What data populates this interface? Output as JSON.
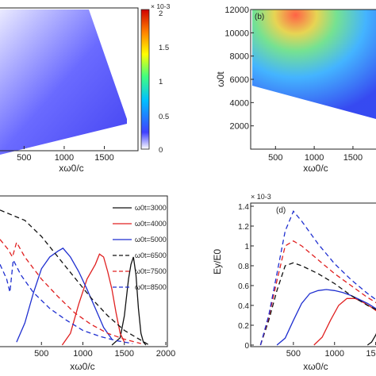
{
  "chart_data": [
    {
      "type": "heatmap",
      "panel": "top-left",
      "xlabel": "xω0/c",
      "x_ticks": [
        500,
        1000,
        1500
      ],
      "xlim": [
        200,
        1900
      ],
      "ylim": [
        0,
        12000
      ],
      "colorbar": {
        "exponent": "× 10-3",
        "ticks": [
          "2",
          "1.5",
          "1",
          "0.5",
          "0"
        ],
        "range": [
          0,
          2
        ],
        "colors": [
          "#ffffff",
          "#4040ff",
          "#00c0ff",
          "#40ff80",
          "#ffff00",
          "#ff8000",
          "#d00000"
        ]
      }
    },
    {
      "type": "heatmap",
      "panel": "top-right",
      "label": "(b)",
      "xlabel": "xω0/c",
      "ylabel": "ω0t",
      "x_ticks": [
        500,
        1000,
        1500
      ],
      "y_ticks": [
        2000,
        4000,
        6000,
        8000,
        10000,
        12000
      ],
      "xlim": [
        200,
        1900
      ],
      "ylim": [
        0,
        12000
      ]
    },
    {
      "type": "line",
      "panel": "bottom-left",
      "xlabel": "xω0/c",
      "x_ticks": [
        500,
        1000,
        1500,
        2000
      ],
      "xlim": [
        0,
        2000
      ],
      "ylim": [
        0,
        1
      ],
      "series": [
        {
          "name": "ω0t=3000",
          "color": "#111111",
          "dash": "solid",
          "x": [
            1350,
            1450,
            1500,
            1550,
            1580,
            1610,
            1640,
            1670,
            1700,
            1730,
            1760
          ],
          "y": [
            0.0,
            0.05,
            0.2,
            0.45,
            0.55,
            0.6,
            0.48,
            0.25,
            0.08,
            0.02,
            0.0
          ]
        },
        {
          "name": "ω0t=4000",
          "color": "#e02020",
          "dash": "solid",
          "x": [
            750,
            850,
            950,
            1050,
            1150,
            1200,
            1250,
            1300,
            1350,
            1400,
            1450,
            1500
          ],
          "y": [
            0.0,
            0.08,
            0.28,
            0.45,
            0.55,
            0.62,
            0.6,
            0.5,
            0.38,
            0.22,
            0.08,
            0.02
          ]
        },
        {
          "name": "ω0t=5000",
          "color": "#1f2fd0",
          "dash": "solid",
          "x": [
            200,
            300,
            400,
            500,
            600,
            700,
            760,
            850,
            950,
            1050,
            1150,
            1250,
            1350
          ],
          "y": [
            0.02,
            0.15,
            0.35,
            0.52,
            0.6,
            0.64,
            0.66,
            0.6,
            0.5,
            0.38,
            0.25,
            0.12,
            0.04
          ]
        },
        {
          "name": "ω0t=6500",
          "color": "#111111",
          "dash": "dash",
          "x": [
            0,
            300,
            500,
            700,
            900,
            1100,
            1300,
            1500,
            1650,
            1800
          ],
          "y": [
            0.92,
            0.85,
            0.74,
            0.6,
            0.46,
            0.32,
            0.2,
            0.1,
            0.05,
            0.0
          ]
        },
        {
          "name": "ω0t=7500",
          "color": "#e02020",
          "dash": "dash",
          "x": [
            0,
            100,
            150,
            200,
            300,
            500,
            700,
            900,
            1100,
            1300,
            1500,
            1700
          ],
          "y": [
            0.72,
            0.65,
            0.6,
            0.7,
            0.6,
            0.45,
            0.33,
            0.22,
            0.14,
            0.08,
            0.04,
            0.01
          ]
        },
        {
          "name": "ω0t=8500",
          "color": "#1f2fd0",
          "dash": "dash",
          "x": [
            0,
            80,
            120,
            160,
            250,
            400,
            600,
            800,
            1000,
            1200,
            1400,
            1600
          ],
          "y": [
            0.55,
            0.45,
            0.36,
            0.58,
            0.48,
            0.36,
            0.25,
            0.17,
            0.1,
            0.06,
            0.03,
            0.01
          ]
        }
      ]
    },
    {
      "type": "line",
      "panel": "bottom-right",
      "label": "(d)",
      "exponent": "× 10-3",
      "xlabel": "xω0/c",
      "ylabel": "Ey/E0",
      "x_ticks": [
        500,
        1000,
        1500
      ],
      "y_ticks": [
        "0",
        "0.2",
        "0.4",
        "0.6",
        "0.8",
        "1",
        "1.2",
        "1.4"
      ],
      "xlim": [
        0,
        1600
      ],
      "ylim": [
        0,
        1.4
      ],
      "series": [
        {
          "color": "#111111",
          "dash": "solid",
          "x": [
            1400,
            1450,
            1500,
            1550,
            1600
          ],
          "y": [
            0.0,
            0.03,
            0.1,
            0.2,
            0.28
          ]
        },
        {
          "color": "#e02020",
          "dash": "solid",
          "x": [
            750,
            850,
            950,
            1050,
            1150,
            1250,
            1350,
            1450,
            1550,
            1600
          ],
          "y": [
            0.0,
            0.08,
            0.25,
            0.4,
            0.47,
            0.47,
            0.43,
            0.38,
            0.32,
            0.3
          ]
        },
        {
          "color": "#1f2fd0",
          "dash": "solid",
          "x": [
            300,
            400,
            500,
            600,
            700,
            800,
            900,
            1000,
            1100,
            1200,
            1300,
            1400,
            1500,
            1600
          ],
          "y": [
            0.0,
            0.07,
            0.25,
            0.42,
            0.52,
            0.55,
            0.56,
            0.55,
            0.53,
            0.5,
            0.46,
            0.42,
            0.37,
            0.33
          ]
        },
        {
          "color": "#111111",
          "dash": "dash",
          "x": [
            100,
            200,
            300,
            400,
            500,
            600,
            800,
            1000,
            1200,
            1400,
            1600
          ],
          "y": [
            0.0,
            0.25,
            0.55,
            0.8,
            0.83,
            0.8,
            0.72,
            0.62,
            0.5,
            0.4,
            0.32
          ]
        },
        {
          "color": "#e02020",
          "dash": "dash",
          "x": [
            100,
            200,
            300,
            400,
            500,
            600,
            800,
            1000,
            1200,
            1400,
            1600
          ],
          "y": [
            0.0,
            0.28,
            0.65,
            1.0,
            1.05,
            1.0,
            0.86,
            0.72,
            0.6,
            0.48,
            0.38
          ]
        },
        {
          "color": "#1f2fd0",
          "dash": "dash",
          "x": [
            100,
            200,
            300,
            400,
            500,
            600,
            800,
            1000,
            1200,
            1400,
            1600
          ],
          "y": [
            0.0,
            0.3,
            0.72,
            1.15,
            1.35,
            1.25,
            1.02,
            0.82,
            0.66,
            0.52,
            0.4
          ]
        }
      ]
    }
  ]
}
